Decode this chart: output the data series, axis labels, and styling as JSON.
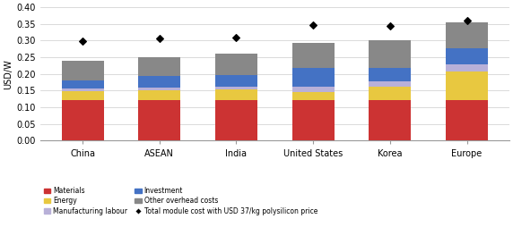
{
  "categories": [
    "China",
    "ASEAN",
    "India",
    "United States",
    "Korea",
    "Europe"
  ],
  "segments": {
    "Materials": [
      0.123,
      0.123,
      0.123,
      0.123,
      0.123,
      0.123
    ],
    "Energy": [
      0.025,
      0.027,
      0.03,
      0.022,
      0.038,
      0.085
    ],
    "Manufacturing labour": [
      0.008,
      0.01,
      0.009,
      0.018,
      0.016,
      0.02
    ],
    "Investment": [
      0.025,
      0.033,
      0.035,
      0.055,
      0.04,
      0.05
    ],
    "Other overhead costs": [
      0.058,
      0.057,
      0.063,
      0.075,
      0.085,
      0.077
    ]
  },
  "diamond_values": [
    0.299,
    0.306,
    0.31,
    0.347,
    0.343,
    0.36
  ],
  "colors": {
    "Materials": "#cc3333",
    "Energy": "#e8c840",
    "Manufacturing labour": "#b8b0d8",
    "Investment": "#4472c4",
    "Other overhead costs": "#888888"
  },
  "ylabel": "USD/W",
  "ylim": [
    0.0,
    0.4
  ],
  "yticks": [
    0.0,
    0.05,
    0.1,
    0.15,
    0.2,
    0.25,
    0.3,
    0.35,
    0.4
  ],
  "ytick_labels": [
    "0.00",
    "0.05",
    "0.10",
    "0.15",
    "0.20",
    "0.25",
    "0.30",
    "0.35",
    "0.40"
  ],
  "diamond_label": "Total module cost with USD 37/kg polysilicon price",
  "background_color": "#ffffff",
  "bar_width": 0.55
}
